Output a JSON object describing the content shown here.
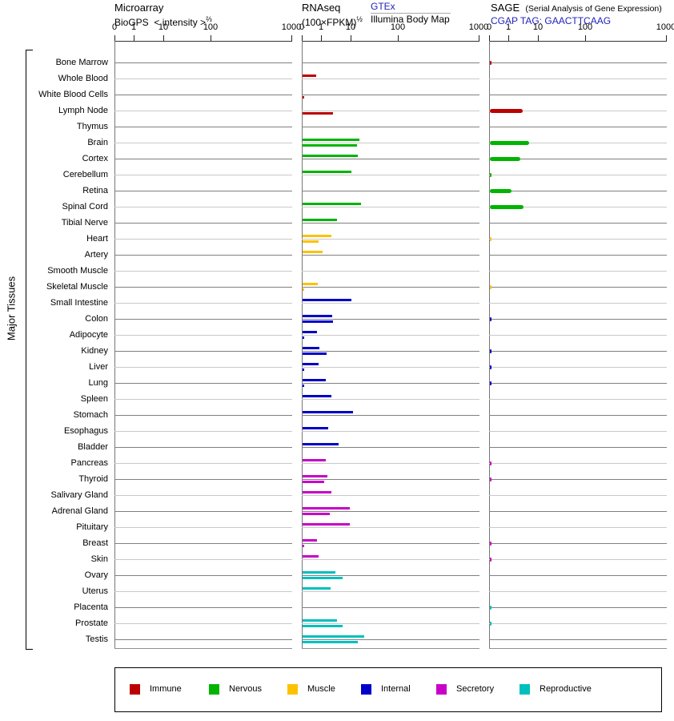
{
  "side_label": "Major Tissues",
  "headers": {
    "microarray": {
      "title": "Microarray",
      "source": "BioGPS",
      "measure": "< intensity >",
      "exponent": "⅔"
    },
    "rnaseq": {
      "title": "RNAseq",
      "measure": "(100×FPKM)",
      "exponent": "½",
      "source_top": "GTEx",
      "source_bottom": "Illumina Body Map"
    },
    "sage": {
      "title": "SAGE",
      "note": "(Serial Analysis of Gene Expression)",
      "link": "CGAP TAG: GAACTTCAAG"
    }
  },
  "axis": {
    "ticks": [
      "0",
      "1",
      "10",
      "100",
      "1000"
    ]
  },
  "group_colors": {
    "immune": "#bb0000",
    "nervous": "#00b400",
    "muscle": "#fcc200",
    "internal": "#0000c8",
    "secretory": "#c800c8",
    "reproductive": "#00bfbf"
  },
  "legend": [
    {
      "group": "immune",
      "label": "Immune"
    },
    {
      "group": "nervous",
      "label": "Nervous"
    },
    {
      "group": "muscle",
      "label": "Muscle"
    },
    {
      "group": "internal",
      "label": "Internal"
    },
    {
      "group": "secretory",
      "label": "Secretory"
    },
    {
      "group": "reproductive",
      "label": "Reproductive"
    }
  ],
  "chart_data": {
    "type": "bar",
    "orientation": "horizontal",
    "value_scale": "pseudo-log, ticks at 0 / 1 / 10 / 100 / 1000",
    "panels": [
      "Microarray BioGPS < intensity >⅔",
      "RNAseq (100×FPKM)½ — GTEx (top bar) / Illumina Body Map (bottom bar)",
      "SAGE CGAP TAG: GAACTTCAAG"
    ],
    "categories_label": "Major Tissues",
    "tissues": [
      {
        "name": "Bone Marrow",
        "group": "immune",
        "sage": 0.1
      },
      {
        "name": "Whole Blood",
        "group": "immune",
        "gtex": 0.7
      },
      {
        "name": "White Blood Cells",
        "group": "immune",
        "illumina": 0.1
      },
      {
        "name": "Lymph Node",
        "group": "immune",
        "illumina": 2.4,
        "sage": 3.0
      },
      {
        "name": "Thymus",
        "group": "immune"
      },
      {
        "name": "Brain",
        "group": "nervous",
        "gtex": 15,
        "illumina": 13,
        "sage": 4.7
      },
      {
        "name": "Cortex",
        "group": "nervous",
        "gtex": 14,
        "sage": 2.4
      },
      {
        "name": "Cerebellum",
        "group": "nervous",
        "gtex": 10,
        "sage": 0.1
      },
      {
        "name": "Retina",
        "group": "nervous",
        "sage": 1.2
      },
      {
        "name": "Spinal Cord",
        "group": "nervous",
        "gtex": 16,
        "sage": 3.2
      },
      {
        "name": "Tibial Nerve",
        "group": "nervous",
        "gtex": 3.3
      },
      {
        "name": "Heart",
        "group": "muscle",
        "gtex": 2.1,
        "illumina": 0.85,
        "sage": 0.05
      },
      {
        "name": "Artery",
        "group": "muscle",
        "gtex": 1.1
      },
      {
        "name": "Smooth Muscle",
        "group": "muscle"
      },
      {
        "name": "Skeletal Muscle",
        "group": "muscle",
        "gtex": 0.8,
        "illumina": 0.05,
        "sage": 0.1
      },
      {
        "name": "Small Intestine",
        "group": "internal",
        "gtex": 10
      },
      {
        "name": "Colon",
        "group": "internal",
        "gtex": 2.3,
        "illumina": 2.4,
        "sage": 0.1
      },
      {
        "name": "Adipocyte",
        "group": "internal",
        "gtex": 0.75,
        "illumina": 0.1
      },
      {
        "name": "Kidney",
        "group": "internal",
        "gtex": 0.9,
        "illumina": 1.5,
        "sage": 0.1
      },
      {
        "name": "Liver",
        "group": "internal",
        "gtex": 0.85,
        "illumina": 0.05,
        "sage": 0.1
      },
      {
        "name": "Lung",
        "group": "internal",
        "gtex": 1.4,
        "illumina": 0.05,
        "sage": 0.1
      },
      {
        "name": "Spleen",
        "group": "internal",
        "gtex": 2.1
      },
      {
        "name": "Stomach",
        "group": "internal",
        "gtex": 11
      },
      {
        "name": "Esophagus",
        "group": "internal",
        "gtex": 1.7
      },
      {
        "name": "Bladder",
        "group": "internal",
        "gtex": 3.8
      },
      {
        "name": "Pancreas",
        "group": "secretory",
        "gtex": 1.4,
        "sage": 0.1
      },
      {
        "name": "Thyroid",
        "group": "secretory",
        "gtex": 1.6,
        "illumina": 1.2,
        "sage": 0.1
      },
      {
        "name": "Salivary Gland",
        "group": "secretory",
        "gtex": 2.1
      },
      {
        "name": "Adrenal Gland",
        "group": "secretory",
        "gtex": 9,
        "illumina": 1.9
      },
      {
        "name": "Pituitary",
        "group": "secretory",
        "gtex": 9
      },
      {
        "name": "Breast",
        "group": "secretory",
        "gtex": 0.75,
        "illumina": 0.05,
        "sage": 0.1
      },
      {
        "name": "Skin",
        "group": "secretory",
        "gtex": 0.85,
        "sage": 0.1
      },
      {
        "name": "Ovary",
        "group": "reproductive",
        "gtex": 2.9,
        "illumina": 5
      },
      {
        "name": "Uterus",
        "group": "reproductive",
        "gtex": 2.0
      },
      {
        "name": "Placenta",
        "group": "reproductive",
        "sage": 0.1
      },
      {
        "name": "Prostate",
        "group": "reproductive",
        "gtex": 3.3,
        "illumina": 5,
        "sage": 0.1
      },
      {
        "name": "Testis",
        "group": "reproductive",
        "gtex": 19,
        "illumina": 14
      }
    ]
  }
}
